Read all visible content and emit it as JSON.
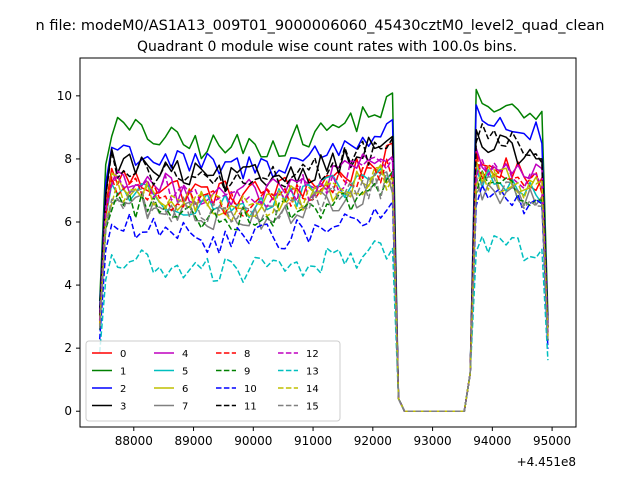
{
  "chart_data": {
    "type": "line",
    "suptitle": "n file: modeM0/AS1A13_009T01_9000006060_45430cztM0_level2_quad_clean",
    "title": "Quadrant 0 module wise count rates with 100.0s bins.",
    "xlabel": "",
    "ylabel": "",
    "x_offset_label": "+4.451e8",
    "xlim": [
      87100,
      95400
    ],
    "ylim": [
      -0.5,
      11.2
    ],
    "xticks": [
      88000,
      89000,
      90000,
      91000,
      92000,
      93000,
      94000,
      95000
    ],
    "yticks": [
      0,
      2,
      4,
      6,
      8,
      10
    ],
    "bin_s": 100,
    "x_start": 87430,
    "active1_end": 92330,
    "gap_start": 92530,
    "gap_end": 93530,
    "active2_start": 93730,
    "x_end": 94930,
    "legend_position": "lower-left",
    "series": [
      {
        "name": "0",
        "color": "#ff0000",
        "dash": "solid",
        "level": 7.6,
        "level2": 7.9
      },
      {
        "name": "1",
        "color": "#008000",
        "dash": "solid",
        "level": 9.2,
        "level2": 9.9
      },
      {
        "name": "2",
        "color": "#0000ff",
        "dash": "solid",
        "level": 8.5,
        "level2": 9.4
      },
      {
        "name": "3",
        "color": "#000000",
        "dash": "solid",
        "level": 8.1,
        "level2": 8.6
      },
      {
        "name": "4",
        "color": "#bf00bf",
        "dash": "solid",
        "level": 7.6,
        "level2": 8.0
      },
      {
        "name": "5",
        "color": "#00bfbf",
        "dash": "solid",
        "level": 7.2,
        "level2": 7.4
      },
      {
        "name": "6",
        "color": "#bfbf00",
        "dash": "solid",
        "level": 7.2,
        "level2": 7.6
      },
      {
        "name": "7",
        "color": "#808080",
        "dash": "solid",
        "level": 6.8,
        "level2": 7.1
      },
      {
        "name": "8",
        "color": "#ff0000",
        "dash": "dashed",
        "level": 7.3,
        "level2": 7.8
      },
      {
        "name": "9",
        "color": "#008000",
        "dash": "dashed",
        "level": 6.8,
        "level2": 7.3
      },
      {
        "name": "10",
        "color": "#0000ff",
        "dash": "dashed",
        "level": 6.0,
        "level2": 6.9
      },
      {
        "name": "11",
        "color": "#000000",
        "dash": "dashed",
        "level": 8.0,
        "level2": 8.9
      },
      {
        "name": "12",
        "color": "#bf00bf",
        "dash": "dashed",
        "level": 7.5,
        "level2": 7.8
      },
      {
        "name": "13",
        "color": "#00bfbf",
        "dash": "dashed",
        "level": 4.9,
        "level2": 5.4
      },
      {
        "name": "14",
        "color": "#bfbf00",
        "dash": "dashed",
        "level": 7.1,
        "level2": 7.5
      },
      {
        "name": "15",
        "color": "#808080",
        "dash": "dashed",
        "level": 6.9,
        "level2": 7.2
      }
    ]
  }
}
